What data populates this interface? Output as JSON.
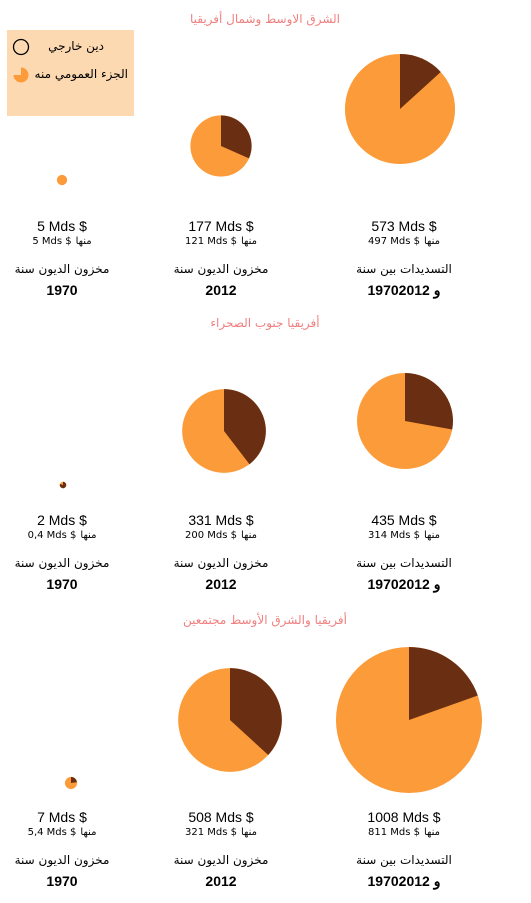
{
  "legend": {
    "external_debt": "دين خارجي",
    "public_share": "الجزء العمومي منه"
  },
  "colors": {
    "orange": "#fc9b3a",
    "brown": "#6a2e12",
    "light": "#fcd9b0",
    "title": "#f08080"
  },
  "chart_data": [
    {
      "type": "pie",
      "title": "الشرق الاوسط وشمال أفريقيا",
      "pies": [
        {
          "label_line1": "مخزون الديون سنة",
          "label_line2": "1970",
          "total": 5,
          "total_text": "5 Mds $",
          "public": 5,
          "public_text": "5 Mds $",
          "minha": "منها"
        },
        {
          "label_line1": "مخزون الديون سنة",
          "label_line2": "2012",
          "total": 177,
          "total_text": "177 Mds $",
          "public": 121,
          "public_text": "121 Mds $",
          "minha": "منها"
        },
        {
          "label_line1": "التسديدات بين سنة",
          "label_line2": "1970و 2012",
          "total": 573,
          "total_text": "573 Mds $",
          "public": 497,
          "public_text": "497 Mds $",
          "minha": "منها"
        }
      ]
    },
    {
      "type": "pie",
      "title": "أفريقيا جنوب الصحراء",
      "pies": [
        {
          "label_line1": "مخزون الديون سنة",
          "label_line2": "1970",
          "total": 2,
          "total_text": "2 Mds $",
          "public": 0.4,
          "public_text": "0,4 Mds $",
          "minha": "منها"
        },
        {
          "label_line1": "مخزون الديون سنة",
          "label_line2": "2012",
          "total": 331,
          "total_text": "331 Mds $",
          "public": 200,
          "public_text": "200 Mds $",
          "minha": "منها"
        },
        {
          "label_line1": "التسديدات بين سنة",
          "label_line2": "1970و 2012",
          "total": 435,
          "total_text": "435 Mds $",
          "public": 314,
          "public_text": "314 Mds $",
          "minha": "منها"
        }
      ]
    },
    {
      "type": "pie",
      "title": "أفريقيا والشرق الأوسط مجتمعين",
      "pies": [
        {
          "label_line1": "مخزون الديون سنة",
          "label_line2": "1970",
          "total": 7,
          "total_text": "7 Mds $",
          "public": 5.4,
          "public_text": "5,4 Mds $",
          "minha": "منها"
        },
        {
          "label_line1": "مخزون الديون سنة",
          "label_line2": "2012",
          "total": 508,
          "total_text": "508 Mds $",
          "public": 321,
          "public_text": "321 Mds $",
          "minha": "منها"
        },
        {
          "label_line1": "التسديدات بين سنة",
          "label_line2": "1970و 2012",
          "total": 1008,
          "total_text": "1008 Mds $",
          "public": 811,
          "public_text": "811 Mds $",
          "minha": "منها"
        }
      ]
    }
  ]
}
